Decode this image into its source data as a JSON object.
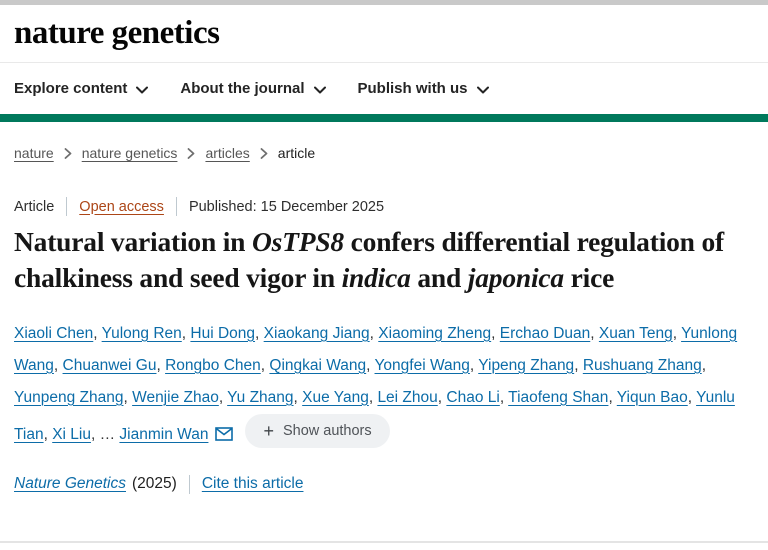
{
  "colors": {
    "topbar_gray": "#c9c9c9",
    "accent_green": "#00795c",
    "link_blue": "#0c6ca8",
    "open_access_rust": "#ac4617"
  },
  "header": {
    "logo": "nature genetics"
  },
  "nav": {
    "items": [
      {
        "label": "Explore content"
      },
      {
        "label": "About the journal"
      },
      {
        "label": "Publish with us"
      }
    ]
  },
  "breadcrumb": {
    "items": [
      {
        "label": "nature",
        "link": true
      },
      {
        "label": "nature genetics",
        "link": true
      },
      {
        "label": "articles",
        "link": true
      },
      {
        "label": "article",
        "link": false
      }
    ]
  },
  "meta": {
    "type": "Article",
    "access": "Open access",
    "published": "Published: 15 December 2025"
  },
  "title": {
    "segments": [
      {
        "text": "Natural variation in ",
        "italic": false
      },
      {
        "text": "OsTPS8",
        "italic": true
      },
      {
        "text": " confers differential regulation of chalkiness and seed vigor in ",
        "italic": false
      },
      {
        "text": "indica",
        "italic": true
      },
      {
        "text": " and ",
        "italic": false
      },
      {
        "text": "japonica",
        "italic": true
      },
      {
        "text": " rice",
        "italic": false
      }
    ]
  },
  "authors": {
    "names": [
      "Xiaoli Chen",
      "Yulong Ren",
      "Hui Dong",
      "Xiaokang Jiang",
      "Xiaoming Zheng",
      "Erchao Duan",
      "Xuan Teng",
      "Yunlong Wang",
      "Chuanwei Gu",
      "Rongbo Chen",
      "Qingkai Wang",
      "Yongfei Wang",
      "Yipeng Zhang",
      "Rushuang Zhang",
      "Yunpeng Zhang",
      "Wenjie Zhao",
      "Yu Zhang",
      "Xue Yang",
      "Lei Zhou",
      "Chao Li",
      "Tiaofeng Shan",
      "Yiqun Bao",
      "Yunlu Tian",
      "Xi Liu"
    ],
    "ellipsis": "…",
    "last_author": "Jianmin Wan",
    "show_more": {
      "plus": "+",
      "label": "Show authors"
    }
  },
  "citation": {
    "journal": "Nature Genetics",
    "year": "(2025)",
    "cite_link": "Cite this article"
  }
}
